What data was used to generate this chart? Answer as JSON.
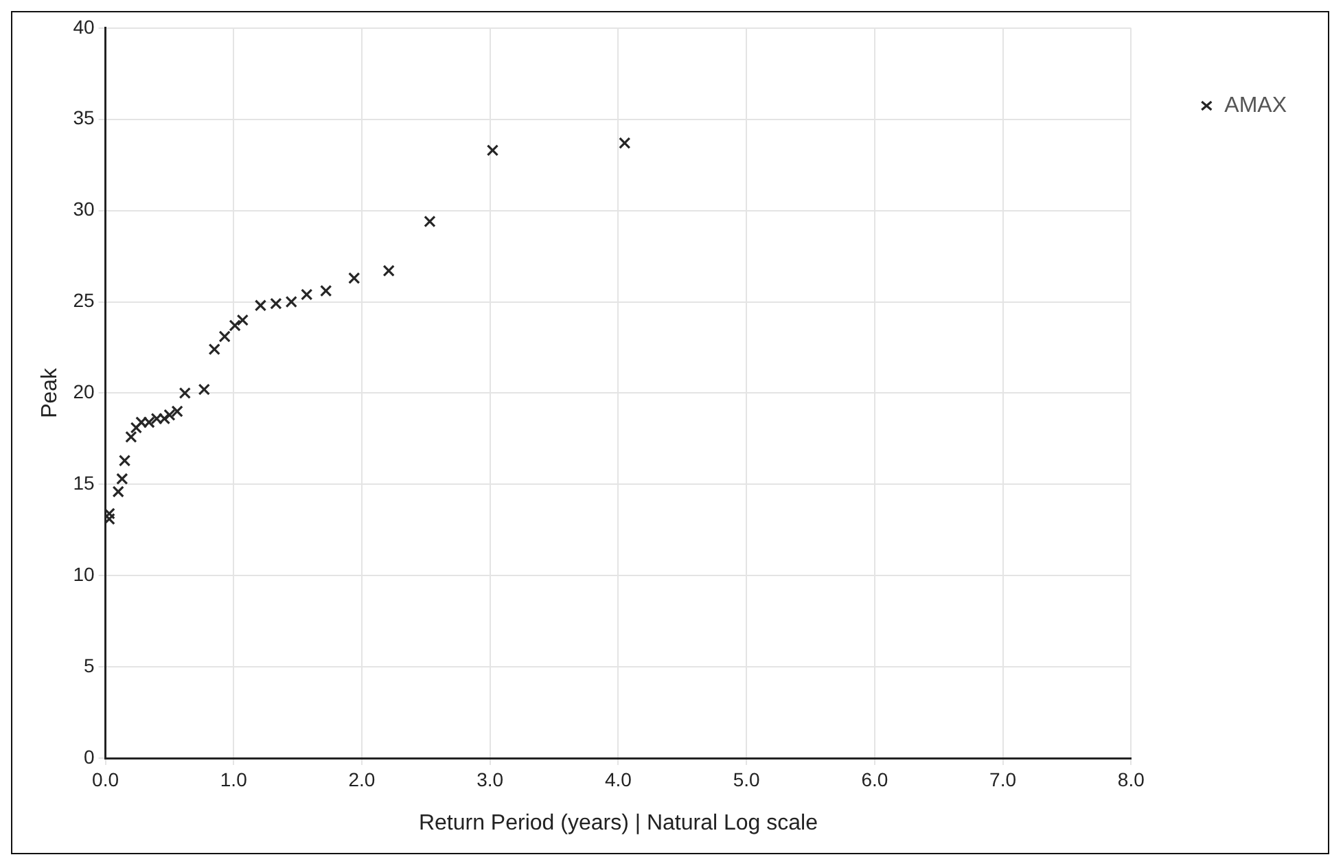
{
  "chart_data": {
    "type": "scatter",
    "xlabel": "Return Period (years) | Natural Log scale",
    "ylabel": "Peak",
    "series": [
      {
        "name": "AMAX",
        "color": "#262626",
        "x": [
          0.03,
          0.03,
          0.1,
          0.13,
          0.15,
          0.2,
          0.24,
          0.28,
          0.34,
          0.4,
          0.46,
          0.5,
          0.56,
          0.62,
          0.77,
          0.85,
          0.93,
          1.01,
          1.07,
          1.21,
          1.33,
          1.45,
          1.57,
          1.72,
          1.94,
          2.21,
          2.53,
          3.02,
          4.05
        ],
        "values": [
          13.1,
          13.4,
          14.6,
          15.3,
          16.3,
          17.6,
          18.1,
          18.4,
          18.4,
          18.6,
          18.6,
          18.8,
          19.0,
          20.0,
          20.2,
          22.4,
          23.1,
          23.7,
          24.0,
          24.8,
          24.9,
          25.0,
          25.4,
          25.6,
          26.3,
          26.7,
          29.4,
          33.3,
          33.7
        ]
      }
    ],
    "xlim": [
      0,
      8
    ],
    "xticks": [
      {
        "value": 0,
        "label": "0.0"
      },
      {
        "value": 1,
        "label": "1.0"
      },
      {
        "value": 2,
        "label": "2.0"
      },
      {
        "value": 3,
        "label": "3.0"
      },
      {
        "value": 4,
        "label": "4.0"
      },
      {
        "value": 5,
        "label": "5.0"
      },
      {
        "value": 6,
        "label": "6.0"
      },
      {
        "value": 7,
        "label": "7.0"
      },
      {
        "value": 8,
        "label": "8.0"
      }
    ],
    "ylim": [
      0,
      40
    ],
    "yticks": [
      0,
      5,
      10,
      15,
      20,
      25,
      30,
      35,
      40
    ],
    "grid": true,
    "legend": "top right",
    "marker": "cross"
  }
}
